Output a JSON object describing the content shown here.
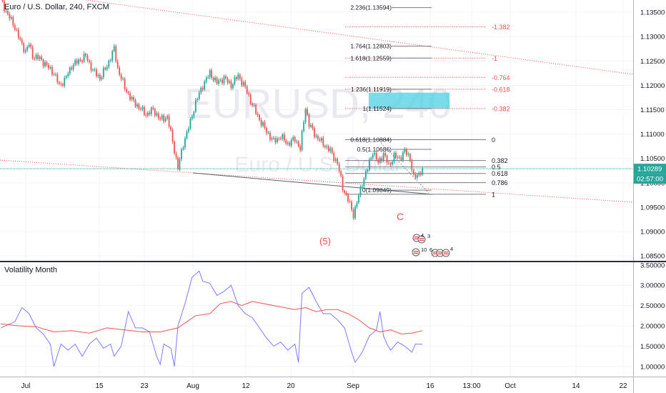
{
  "header": {
    "title": "Euro / U.S. Dollar, 240, FXCM",
    "watermark_symbol": "EURUSD, 240",
    "watermark_name": "Euro / U.S. Dollar"
  },
  "indicator": {
    "title": "Volatility Month"
  },
  "wave_labels": {
    "c": "C",
    "five": "(5)"
  },
  "events": {
    "top_counts": [
      "4",
      "3"
    ],
    "bottom_counts": [
      "10",
      "6",
      "4"
    ]
  },
  "price_badges": {
    "last_price": "1.10289",
    "countdown": "02:57:00",
    "up_color": "#26a69a",
    "down_color": "#ef5350",
    "last_color": "#26a69a"
  },
  "chart_data": [
    {
      "type": "candlestick",
      "title": "Euro / U.S. Dollar, 240, FXCM",
      "x_ticks": [
        "Jul",
        "15",
        "23",
        "Aug",
        "12",
        "20",
        "Sep",
        "16",
        "13:00",
        "Oct",
        "14",
        "22"
      ],
      "y_ticks": [
        "1.13500",
        "1.13000",
        "1.12500",
        "1.12000",
        "1.11500",
        "1.11000",
        "1.10500",
        "1.10000",
        "1.09500",
        "1.09000",
        "1.08500"
      ],
      "ylim": [
        1.084,
        1.1375
      ],
      "last_price": 1.10289,
      "close_path": [
        [
          0,
          1.1375
        ],
        [
          4,
          1.1345
        ],
        [
          8,
          1.132
        ],
        [
          11,
          1.129
        ],
        [
          14,
          1.127
        ],
        [
          16,
          1.1285
        ],
        [
          18,
          1.126
        ],
        [
          22,
          1.1255
        ],
        [
          26,
          1.124
        ],
        [
          30,
          1.1225
        ],
        [
          33,
          1.12
        ],
        [
          36,
          1.121
        ],
        [
          40,
          1.124
        ],
        [
          44,
          1.125
        ],
        [
          48,
          1.126
        ],
        [
          52,
          1.123
        ],
        [
          56,
          1.1215
        ],
        [
          60,
          1.124
        ],
        [
          64,
          1.1275
        ],
        [
          66,
          1.1235
        ],
        [
          70,
          1.1195
        ],
        [
          74,
          1.117
        ],
        [
          78,
          1.1155
        ],
        [
          82,
          1.114
        ],
        [
          86,
          1.115
        ],
        [
          90,
          1.113
        ],
        [
          94,
          1.1135
        ],
        [
          97,
          1.1085
        ],
        [
          100,
          1.103
        ],
        [
          103,
          1.108
        ],
        [
          107,
          1.1125
        ],
        [
          110,
          1.1165
        ],
        [
          114,
          1.12
        ],
        [
          118,
          1.1225
        ],
        [
          122,
          1.1205
        ],
        [
          126,
          1.1215
        ],
        [
          130,
          1.12
        ],
        [
          134,
          1.122
        ],
        [
          138,
          1.1195
        ],
        [
          142,
          1.116
        ],
        [
          146,
          1.113
        ],
        [
          150,
          1.1105
        ],
        [
          154,
          1.1085
        ],
        [
          158,
          1.1095
        ],
        [
          162,
          1.108
        ],
        [
          166,
          1.109
        ],
        [
          169,
          1.107
        ],
        [
          172,
          1.1155
        ],
        [
          174,
          1.112
        ],
        [
          178,
          1.1095
        ],
        [
          182,
          1.108
        ],
        [
          186,
          1.1065
        ],
        [
          190,
          1.104
        ],
        [
          193,
          1.099
        ],
        [
          196,
          1.0965
        ],
        [
          199,
          1.0935
        ],
        [
          201,
          1.096
        ],
        [
          204,
          1.1
        ],
        [
          207,
          1.103
        ],
        [
          210,
          1.1065
        ],
        [
          213,
          1.104
        ],
        [
          216,
          1.106
        ],
        [
          219,
          1.1035
        ],
        [
          222,
          1.1055
        ],
        [
          225,
          1.105
        ],
        [
          228,
          1.1065
        ],
        [
          231,
          1.105
        ],
        [
          233,
          1.101
        ],
        [
          235,
          1.1015
        ],
        [
          238,
          1.1029
        ]
      ],
      "fibonacci_retracement": {
        "levels": [
          {
            "ratio": "0",
            "price": 1.10884
          },
          {
            "ratio": "0.382",
            "price": 1.10457
          },
          {
            "ratio": "0.5",
            "price": 1.10325
          },
          {
            "ratio": "0.618",
            "price": 1.10192
          },
          {
            "ratio": "0.786",
            "price": 1.10004
          },
          {
            "ratio": "1",
            "price": 1.09765
          }
        ]
      },
      "fibonacci_extension": {
        "levels": [
          {
            "ratio": "-0.382",
            "price": 1.11524
          },
          {
            "ratio": "-0.618",
            "price": 1.11919
          },
          {
            "ratio": "-0.764",
            "price": 1.12163
          },
          {
            "ratio": "-1",
            "price": 1.12559
          },
          {
            "ratio": "-1.382",
            "price": 1.13198
          }
        ]
      },
      "level_labels": [
        {
          "text": "2.236(1.13594)",
          "price": 1.13594
        },
        {
          "text": "1.764(1.12803)",
          "price": 1.12803
        },
        {
          "text": "1.618(1.12559)",
          "price": 1.12559
        },
        {
          "text": "1.236(1.11919)",
          "price": 1.11919
        },
        {
          "text": "1(1.11524)",
          "price": 1.11524
        },
        {
          "text": "0.618(1.10884)",
          "price": 1.10884
        },
        {
          "text": "0.5(1.10686)",
          "price": 1.10686
        },
        {
          "text": "0(1.09849)",
          "price": 1.09849
        }
      ],
      "target_zone": {
        "from": 1.1152,
        "to": 1.1185,
        "color": "#4dd0e1"
      }
    },
    {
      "type": "line",
      "title": "Volatility Month",
      "y_ticks": [
        "3.50000",
        "3.00000",
        "2.50000",
        "2.00000",
        "1.50000",
        "1.00000"
      ],
      "ylim": [
        0.75,
        3.55
      ],
      "series": [
        {
          "color": "#7b7bff",
          "points": [
            [
              0,
              1.95
            ],
            [
              8,
              2.1
            ],
            [
              12,
              2.45
            ],
            [
              16,
              2.3
            ],
            [
              20,
              1.95
            ],
            [
              24,
              1.8
            ],
            [
              28,
              1.55
            ],
            [
              30,
              1.0
            ],
            [
              34,
              1.55
            ],
            [
              38,
              1.4
            ],
            [
              42,
              1.55
            ],
            [
              46,
              1.25
            ],
            [
              50,
              1.55
            ],
            [
              54,
              1.7
            ],
            [
              58,
              1.45
            ],
            [
              62,
              1.55
            ],
            [
              64,
              1.25
            ],
            [
              68,
              1.5
            ],
            [
              72,
              2.35
            ],
            [
              76,
              1.95
            ],
            [
              80,
              1.95
            ],
            [
              84,
              1.85
            ],
            [
              88,
              1.25
            ],
            [
              90,
              1.05
            ],
            [
              92,
              1.55
            ],
            [
              96,
              1.45
            ],
            [
              98,
              1.0
            ],
            [
              100,
              2.0
            ],
            [
              104,
              2.55
            ],
            [
              108,
              3.2
            ],
            [
              112,
              3.35
            ],
            [
              114,
              3.1
            ],
            [
              118,
              3.05
            ],
            [
              122,
              2.75
            ],
            [
              126,
              2.85
            ],
            [
              130,
              3.0
            ],
            [
              134,
              2.5
            ],
            [
              138,
              2.3
            ],
            [
              142,
              2.2
            ],
            [
              146,
              1.95
            ],
            [
              150,
              1.7
            ],
            [
              154,
              1.5
            ],
            [
              158,
              1.6
            ],
            [
              162,
              1.4
            ],
            [
              166,
              1.55
            ],
            [
              168,
              1.1
            ],
            [
              170,
              2.8
            ],
            [
              174,
              2.95
            ],
            [
              178,
              2.6
            ],
            [
              182,
              2.3
            ],
            [
              186,
              2.3
            ],
            [
              190,
              2.15
            ],
            [
              194,
              1.95
            ],
            [
              198,
              1.35
            ],
            [
              200,
              1.1
            ],
            [
              204,
              1.35
            ],
            [
              208,
              1.75
            ],
            [
              212,
              1.9
            ],
            [
              214,
              2.35
            ],
            [
              216,
              1.75
            ],
            [
              218,
              1.55
            ],
            [
              220,
              1.4
            ],
            [
              224,
              1.6
            ],
            [
              228,
              1.5
            ],
            [
              232,
              1.35
            ],
            [
              234,
              1.55
            ],
            [
              238,
              1.55
            ]
          ]
        },
        {
          "color": "#ef5350",
          "points": [
            [
              0,
              2.05
            ],
            [
              10,
              2.0
            ],
            [
              20,
              1.98
            ],
            [
              30,
              1.85
            ],
            [
              40,
              1.88
            ],
            [
              50,
              1.82
            ],
            [
              60,
              1.95
            ],
            [
              70,
              1.9
            ],
            [
              80,
              1.85
            ],
            [
              90,
              1.85
            ],
            [
              100,
              1.95
            ],
            [
              105,
              2.1
            ],
            [
              110,
              2.25
            ],
            [
              118,
              2.3
            ],
            [
              124,
              2.55
            ],
            [
              130,
              2.6
            ],
            [
              136,
              2.5
            ],
            [
              142,
              2.6
            ],
            [
              148,
              2.55
            ],
            [
              154,
              2.5
            ],
            [
              160,
              2.45
            ],
            [
              166,
              2.4
            ],
            [
              172,
              2.45
            ],
            [
              178,
              2.35
            ],
            [
              184,
              2.4
            ],
            [
              190,
              2.4
            ],
            [
              196,
              2.3
            ],
            [
              202,
              2.15
            ],
            [
              208,
              1.95
            ],
            [
              214,
              1.85
            ],
            [
              220,
              1.9
            ],
            [
              226,
              1.8
            ],
            [
              232,
              1.82
            ],
            [
              238,
              1.88
            ]
          ]
        }
      ]
    }
  ]
}
